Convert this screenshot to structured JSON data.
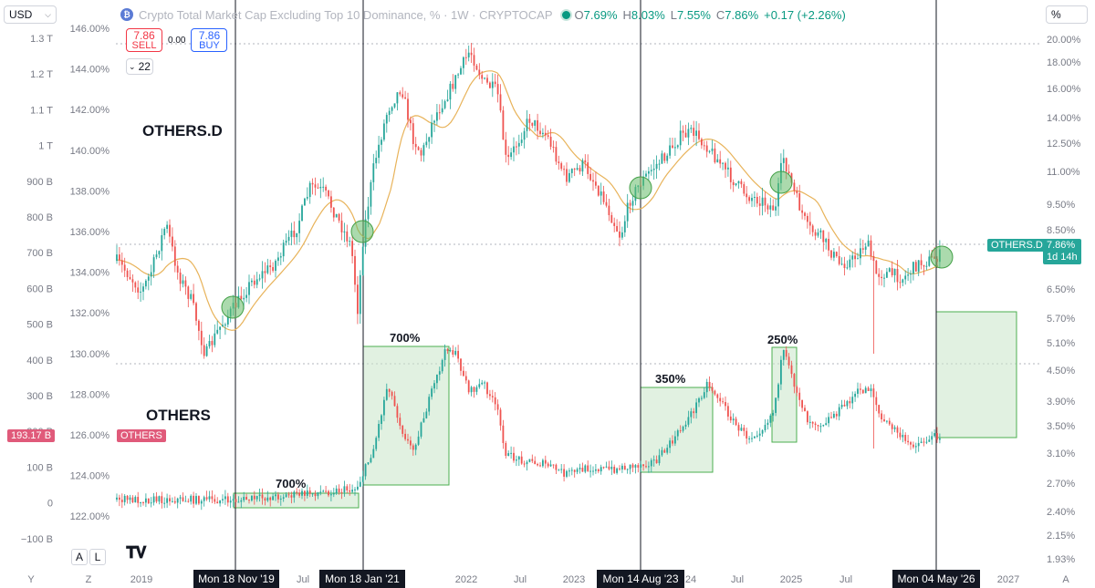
{
  "header": {
    "currency": "USD",
    "title": "Crypto Total Market Cap Excluding Top 10 Dominance, % · 1W · CRYPTOCAP",
    "o_label": "O",
    "o_value": "7.69%",
    "h_label": "H",
    "h_value": "8.03%",
    "l_label": "L",
    "l_value": "7.55%",
    "c_label": "C",
    "c_value": "7.86%",
    "change": "+0.17 (+2.26%)",
    "scale_mode": "%"
  },
  "trade": {
    "sell_price": "7.86",
    "sell_label": "SELL",
    "spread": "0.00",
    "buy_price": "7.86",
    "buy_label": "BUY",
    "indicators_count": "22"
  },
  "tags": {
    "others_d_name": "OTHERS.D",
    "others_d_value": "7.86%",
    "others_d_countdown": "1d 14h",
    "others_value": "193.17 B",
    "others_name": "OTHERS"
  },
  "annotations": {
    "top_label": "OTHERS.D",
    "bottom_label": "OTHERS",
    "gain1": "700%",
    "gain2": "700%",
    "gain3": "350%",
    "gain4": "250%"
  },
  "bottom": {
    "left_axis_icon": "Y",
    "zoom_icon": "Z",
    "auto_icon": "A",
    "x_ticks": [
      "2019",
      "Jul",
      "2022",
      "Jul",
      "2023",
      "24",
      "Jul",
      "2025",
      "Jul",
      "2027"
    ],
    "date_tags": [
      "Mon 18 Nov '19",
      "Mon 18 Jan '21",
      "Mon 14 Aug '23",
      "Mon 04 May '26"
    ],
    "btn_a": "A",
    "btn_l": "L",
    "logo": "TV"
  },
  "axes": {
    "left_ticks": [
      "1.3 T",
      "1.2 T",
      "1.1 T",
      "1 T",
      "900 B",
      "800 B",
      "700 B",
      "600 B",
      "500 B",
      "400 B",
      "300 B",
      "200 B",
      "100 B",
      "0",
      "−100 B"
    ],
    "mid_ticks": [
      "146.00%",
      "144.00%",
      "142.00%",
      "140.00%",
      "138.00%",
      "136.00%",
      "134.00%",
      "132.00%",
      "130.00%",
      "128.00%",
      "126.00%",
      "124.00%",
      "122.00%"
    ],
    "right_ticks": [
      "20.00%",
      "18.00%",
      "16.00%",
      "14.00%",
      "12.50%",
      "11.00%",
      "9.50%",
      "8.50%",
      "6.50%",
      "5.70%",
      "5.10%",
      "4.50%",
      "3.90%",
      "3.50%",
      "3.10%",
      "2.70%",
      "2.40%",
      "2.15%",
      "1.93%"
    ]
  },
  "colors": {
    "up": "#089981",
    "down": "#f23645",
    "up_candle": "#26a69a",
    "down_candle": "#ef5350",
    "ma": "#e8b35a",
    "box_fill": "#c8e6c9",
    "box_stroke": "#4caf50",
    "circle": "#66bb6a",
    "tag_others_d": "#26a69a",
    "tag_others": "#e05a7a"
  },
  "chart_data": {
    "type": "line",
    "title": "Crypto Total Market Cap Excluding Top 10 Dominance, %",
    "series": [
      {
        "name": "OTHERS.D",
        "x": [
          "2018-06",
          "2018-12",
          "2019-06",
          "2019-11",
          "2020-06",
          "2020-12",
          "2021-01",
          "2021-05",
          "2021-10",
          "2022-06",
          "2022-12",
          "2023-08",
          "2024-03",
          "2024-09",
          "2024-12",
          "2025-06",
          "2026-05"
        ],
        "values": [
          7.9,
          6.2,
          7.5,
          5.9,
          7.2,
          11.0,
          8.5,
          14.5,
          19.5,
          12.5,
          10.5,
          10.2,
          13.0,
          9.8,
          11.5,
          7.0,
          7.86
        ]
      },
      {
        "name": "OTHERS",
        "x": [
          "2018-06",
          "2019-11",
          "2020-12",
          "2021-01",
          "2021-05",
          "2021-11",
          "2022-06",
          "2022-12",
          "2023-08",
          "2024-03",
          "2024-09",
          "2024-12",
          "2025-06",
          "2026-05"
        ],
        "values": [
          15,
          10,
          40,
          60,
          460,
          640,
          170,
          100,
          110,
          420,
          180,
          560,
          210,
          193.17
        ]
      }
    ]
  }
}
